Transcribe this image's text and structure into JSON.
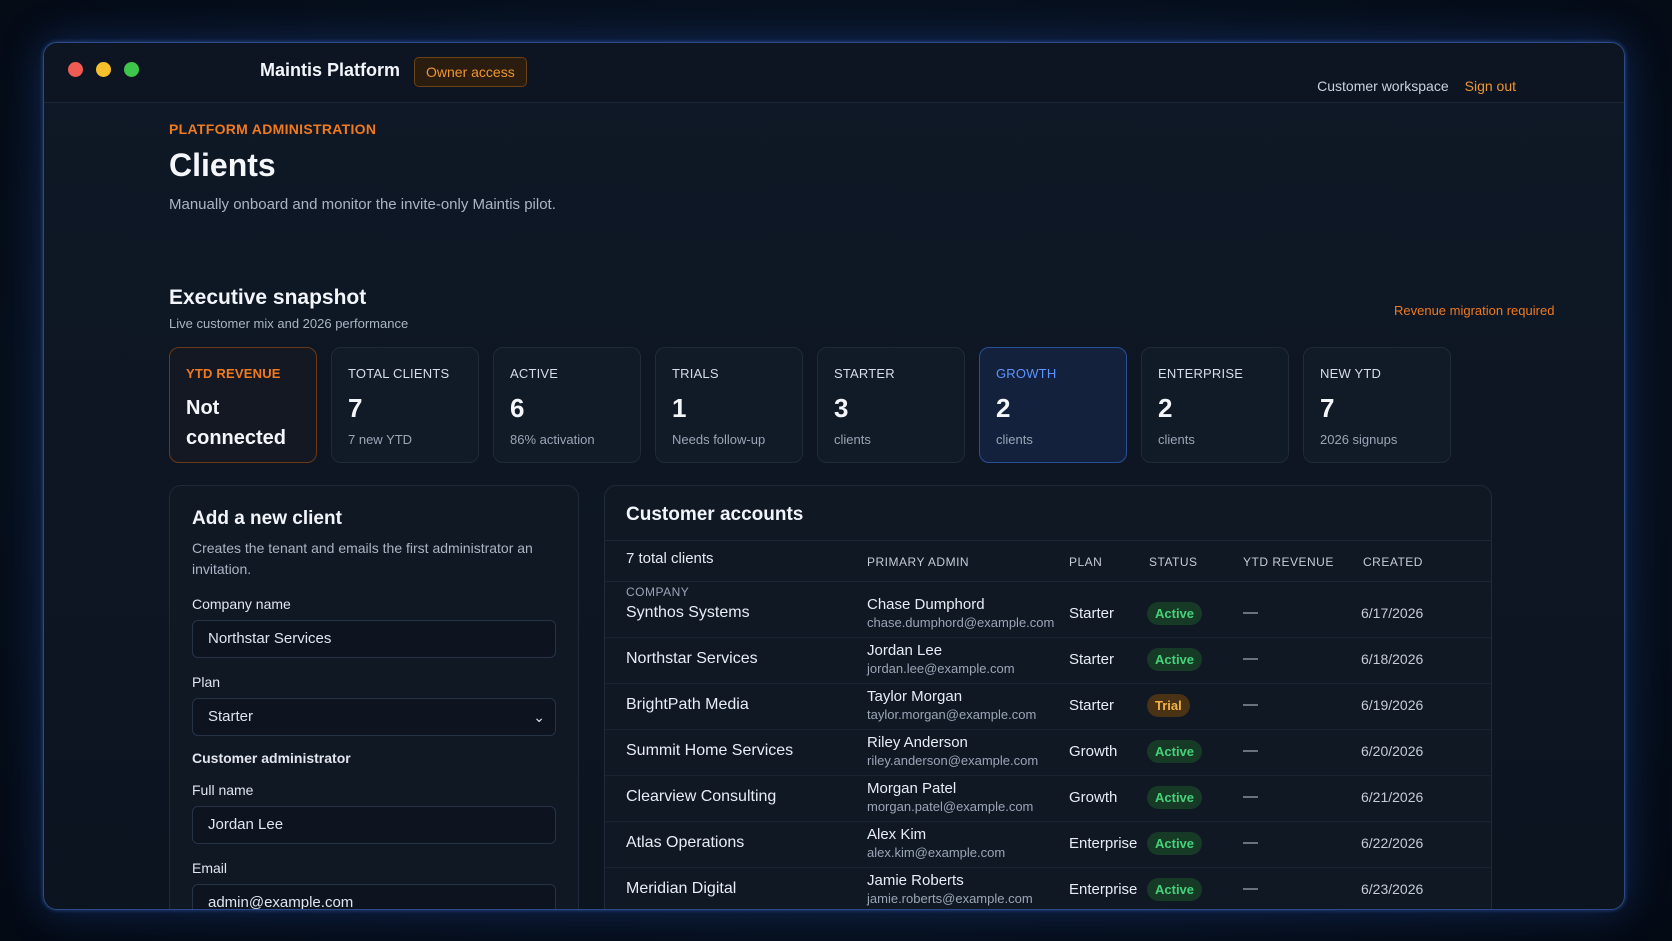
{
  "titlebar": {
    "app_title": "Maintis Platform",
    "access_badge": "Owner access",
    "workspace_link": "Customer workspace",
    "sign_out": "Sign out"
  },
  "page": {
    "eyebrow": "PLATFORM ADMINISTRATION",
    "title": "Clients",
    "subtitle": "Manually onboard and monitor the invite-only Maintis pilot."
  },
  "snapshot": {
    "title": "Executive snapshot",
    "subtitle": "Live customer mix and 2026 performance",
    "warning": "Revenue migration required",
    "cards": [
      {
        "label": "YTD REVENUE",
        "line1": "Not",
        "line2": "connected"
      },
      {
        "label": "TOTAL CLIENTS",
        "value": "7",
        "sub": "7 new YTD"
      },
      {
        "label": "ACTIVE",
        "value": "6",
        "sub": "86% activation"
      },
      {
        "label": "TRIALS",
        "value": "1",
        "sub": "Needs follow-up"
      },
      {
        "label": "STARTER",
        "value": "3",
        "sub": "clients"
      },
      {
        "label": "GROWTH",
        "value": "2",
        "sub": "clients"
      },
      {
        "label": "ENTERPRISE",
        "value": "2",
        "sub": "clients"
      },
      {
        "label": "NEW YTD",
        "value": "7",
        "sub": "2026 signups"
      }
    ]
  },
  "form": {
    "title": "Add a new client",
    "description": "Creates the tenant and emails the first administrator an invitation.",
    "company_label": "Company name",
    "company_value": "Northstar Services",
    "plan_label": "Plan",
    "plan_value": "Starter",
    "admin_section": "Customer administrator",
    "fullname_label": "Full name",
    "fullname_value": "Jordan Lee",
    "email_label": "Email",
    "email_placeholder": "admin@example.com"
  },
  "table": {
    "title": "Customer accounts",
    "count": "7 total clients",
    "columns": {
      "company": "COMPANY",
      "admin": "PRIMARY ADMIN",
      "plan": "PLAN",
      "status": "STATUS",
      "revenue": "YTD REVENUE",
      "created": "CREATED"
    },
    "rows": [
      {
        "company": "Synthos Systems",
        "admin": "Chase Dumphord",
        "email": "chase.dumphord@example.com",
        "plan": "Starter",
        "status": "Active",
        "revenue": "—",
        "created": "6/17/2026"
      },
      {
        "company": "Northstar Services",
        "admin": "Jordan Lee",
        "email": "jordan.lee@example.com",
        "plan": "Starter",
        "status": "Active",
        "revenue": "—",
        "created": "6/18/2026"
      },
      {
        "company": "BrightPath Media",
        "admin": "Taylor Morgan",
        "email": "taylor.morgan@example.com",
        "plan": "Starter",
        "status": "Trial",
        "revenue": "—",
        "created": "6/19/2026"
      },
      {
        "company": "Summit Home Services",
        "admin": "Riley Anderson",
        "email": "riley.anderson@example.com",
        "plan": "Growth",
        "status": "Active",
        "revenue": "—",
        "created": "6/20/2026"
      },
      {
        "company": "Clearview Consulting",
        "admin": "Morgan Patel",
        "email": "morgan.patel@example.com",
        "plan": "Growth",
        "status": "Active",
        "revenue": "—",
        "created": "6/21/2026"
      },
      {
        "company": "Atlas Operations",
        "admin": "Alex Kim",
        "email": "alex.kim@example.com",
        "plan": "Enterprise",
        "status": "Active",
        "revenue": "—",
        "created": "6/22/2026"
      },
      {
        "company": "Meridian Digital",
        "admin": "Jamie Roberts",
        "email": "jamie.roberts@example.com",
        "plan": "Enterprise",
        "status": "Active",
        "revenue": "—",
        "created": "6/23/2026"
      }
    ]
  },
  "colors": {
    "accent": "#f07a20",
    "growth": "#5b95ff",
    "active": "#47d17a",
    "trial": "#f3b245"
  }
}
